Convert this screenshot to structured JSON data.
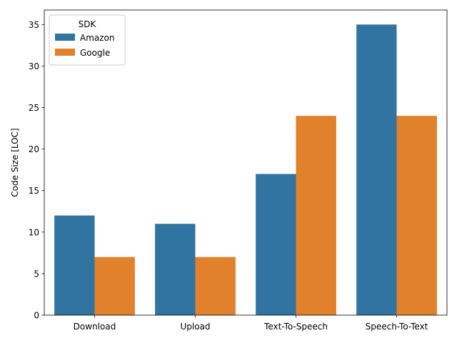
{
  "chart_data": {
    "type": "bar",
    "title": "",
    "xlabel": "",
    "ylabel": "Code Size [LOC]",
    "categories": [
      "Download",
      "Upload",
      "Text-To-Speech",
      "Speech-To-Text"
    ],
    "series": [
      {
        "name": "Amazon",
        "color": "#3274a1",
        "values": [
          12,
          11,
          17,
          35
        ]
      },
      {
        "name": "Google",
        "color": "#e1812c",
        "values": [
          7,
          7,
          24,
          24
        ]
      }
    ],
    "yticks": [
      "0",
      "5",
      "10",
      "15",
      "20",
      "25",
      "30",
      "35"
    ],
    "ylim": [
      0,
      36.75
    ],
    "grid": false,
    "legend": {
      "title": "SDK",
      "placement": "top-left"
    }
  }
}
